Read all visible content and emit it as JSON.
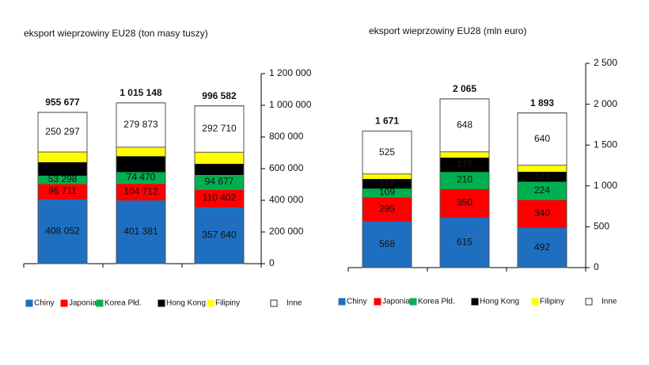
{
  "chart_data": [
    {
      "type": "stacked-bar",
      "title": "eksport wieprzowiny EU28 (ton masy tuszy)",
      "categories": [
        null,
        null,
        null
      ],
      "series": [
        {
          "name": "Chiny",
          "color": "#1f6fc0",
          "values": [
            408052,
            401381,
            357640
          ],
          "value_labels": [
            "408 052",
            "401 381",
            "357 640"
          ]
        },
        {
          "name": "Japonia",
          "color": "#ff0000",
          "values": [
            96711,
            104712,
            110402
          ],
          "value_labels": [
            "96 711",
            "104 712",
            "110 402"
          ]
        },
        {
          "name": "Korea Płd.",
          "color": "#00b050",
          "values": [
            53298,
            74470,
            94677
          ],
          "value_labels": [
            "53 298",
            "74 470",
            "94 677"
          ]
        },
        {
          "name": "Hong Kong",
          "color": "#000000",
          "values": [
            85000,
            100000,
            70000
          ],
          "value_labels": [
            null,
            null,
            null
          ]
        },
        {
          "name": "Filipiny",
          "color": "#ffff00",
          "values": [
            62000,
            55000,
            71000
          ],
          "value_labels": [
            null,
            null,
            null
          ]
        },
        {
          "name": "Inne",
          "color": "#ffffff",
          "values": [
            250297,
            279873,
            292710
          ],
          "value_labels": [
            "250 297",
            "279 873",
            "292 710"
          ]
        }
      ],
      "totals": [
        955677,
        1015148,
        996582
      ],
      "total_labels": [
        "955 677",
        "1 015 148",
        "996 582"
      ],
      "ylim": [
        0,
        1200000
      ],
      "yticks": [
        0,
        {
          "value": 200000,
          "label": "200 000"
        },
        {
          "value": 400000,
          "label": "400 000"
        },
        {
          "value": 600000,
          "label": "600 000"
        },
        {
          "value": 800000,
          "label": "800 000"
        },
        {
          "value": 1000000,
          "label": "1 000 000"
        },
        {
          "value": 1200000,
          "label": "1 200 000"
        }
      ],
      "y_axis_side": "right"
    },
    {
      "type": "stacked-bar",
      "title": "eksport wieprzowiny EU28 (mln euro)",
      "categories": [
        null,
        null,
        null
      ],
      "series": [
        {
          "name": "Chiny",
          "color": "#1f6fc0",
          "values": [
            568,
            615,
            492
          ]
        },
        {
          "name": "Japonia",
          "color": "#ff0000",
          "values": [
            295,
            350,
            340
          ]
        },
        {
          "name": "Korea Płd.",
          "color": "#00b050",
          "values": [
            109,
            210,
            224
          ]
        },
        {
          "name": "Hong Kong",
          "color": "#000000",
          "values": [
            117,
            175,
            121
          ]
        },
        {
          "name": "Filipiny",
          "color": "#ffff00",
          "values": [
            57,
            67,
            76
          ],
          "value_labels": [
            null,
            null,
            null
          ]
        },
        {
          "name": "Inne",
          "color": "#ffffff",
          "values": [
            525,
            648,
            640
          ]
        }
      ],
      "totals": [
        1671,
        2065,
        1893
      ],
      "total_labels": [
        "1 671",
        "2 065",
        "1 893"
      ],
      "ylim": [
        0,
        2500
      ],
      "yticks": [
        0,
        500,
        {
          "value": 1000,
          "label": "1 000"
        },
        {
          "value": 1500,
          "label": "1 500"
        },
        {
          "value": 2000,
          "label": "2 000"
        },
        {
          "value": 2500,
          "label": "2 500"
        }
      ],
      "y_axis_side": "right"
    }
  ]
}
